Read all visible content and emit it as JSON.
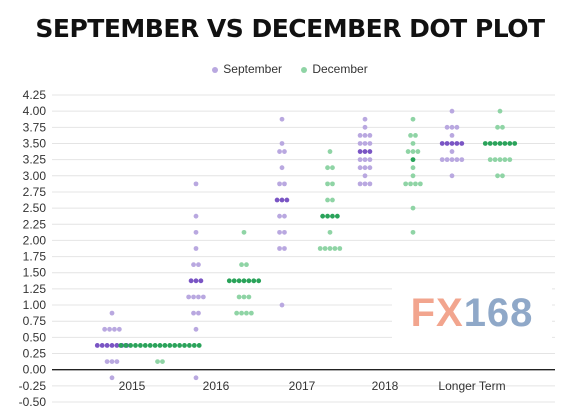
{
  "chart_data": {
    "type": "scatter",
    "title": "SEPTEMBER VS DECEMBER DOT PLOT",
    "legend_position": "top-center",
    "categories": [
      "2015",
      "2016",
      "2017",
      "2018",
      "Longer Term"
    ],
    "y_ticks": [
      "4.25",
      "4.00",
      "3.75",
      "3.50",
      "3.25",
      "3.00",
      "2.75",
      "2.50",
      "2.25",
      "2.00",
      "1.75",
      "1.50",
      "1.25",
      "1.00",
      "0.75",
      "0.50",
      "0.25",
      "0.00",
      "-0.25",
      "-0.50"
    ],
    "ylim": [
      -0.5,
      4.25
    ],
    "grid": true,
    "series": [
      {
        "name": "September",
        "color": "#b9a8e0",
        "mode_color": "#7a55c4",
        "groups": [
          {
            "category": "2015",
            "dots": [
              [
                0.875,
                1
              ],
              [
                0.625,
                4
              ],
              [
                0.375,
                7
              ],
              [
                0.125,
                3
              ],
              [
                -0.125,
                1
              ]
            ],
            "mode": 0.375
          },
          {
            "category": "2016",
            "dots": [
              [
                2.875,
                1
              ],
              [
                2.375,
                1
              ],
              [
                2.125,
                1
              ],
              [
                1.875,
                1
              ],
              [
                1.625,
                2
              ],
              [
                1.375,
                3
              ],
              [
                1.125,
                4
              ],
              [
                0.875,
                2
              ],
              [
                0.625,
                1
              ],
              [
                -0.125,
                1
              ]
            ],
            "mode": 1.375
          },
          {
            "category": "2017",
            "dots": [
              [
                3.875,
                1
              ],
              [
                3.5,
                1
              ],
              [
                3.375,
                2
              ],
              [
                3.125,
                1
              ],
              [
                2.875,
                2
              ],
              [
                2.625,
                3
              ],
              [
                2.375,
                2
              ],
              [
                2.125,
                2
              ],
              [
                1.875,
                2
              ],
              [
                1.0,
                1
              ]
            ],
            "mode": 2.625
          },
          {
            "category": "2018",
            "dots": [
              [
                3.875,
                1
              ],
              [
                3.75,
                1
              ],
              [
                3.625,
                3
              ],
              [
                3.5,
                3
              ],
              [
                3.375,
                3
              ],
              [
                3.25,
                3
              ],
              [
                3.125,
                3
              ],
              [
                3.0,
                1
              ],
              [
                2.875,
                3
              ]
            ],
            "mode": 3.375
          },
          {
            "category": "Longer Term",
            "dots": [
              [
                4.0,
                1
              ],
              [
                3.75,
                3
              ],
              [
                3.625,
                1
              ],
              [
                3.5,
                5
              ],
              [
                3.375,
                1
              ],
              [
                3.25,
                5
              ],
              [
                3.0,
                1
              ]
            ],
            "mode": 3.5
          }
        ]
      },
      {
        "name": "December",
        "color": "#8fd4a5",
        "mode_color": "#2aa35a",
        "groups": [
          {
            "category": "2015",
            "dots": [
              [
                0.375,
                17
              ],
              [
                0.125,
                2
              ]
            ],
            "mode": 0.375
          },
          {
            "category": "2016",
            "dots": [
              [
                2.125,
                1
              ],
              [
                1.625,
                2
              ],
              [
                1.375,
                7
              ],
              [
                1.125,
                3
              ],
              [
                0.875,
                4
              ]
            ],
            "mode": 1.375
          },
          {
            "category": "2017",
            "dots": [
              [
                3.375,
                1
              ],
              [
                3.125,
                2
              ],
              [
                2.875,
                2
              ],
              [
                2.625,
                2
              ],
              [
                2.375,
                4
              ],
              [
                2.125,
                1
              ],
              [
                1.875,
                5
              ]
            ],
            "mode": 2.375
          },
          {
            "category": "2018",
            "dots": [
              [
                3.875,
                1
              ],
              [
                3.625,
                2
              ],
              [
                3.5,
                1
              ],
              [
                3.375,
                3
              ],
              [
                3.25,
                1
              ],
              [
                3.125,
                1
              ],
              [
                3.0,
                1
              ],
              [
                2.875,
                4
              ],
              [
                2.5,
                1
              ],
              [
                2.125,
                1
              ]
            ],
            "mode": 3.25
          },
          {
            "category": "Longer Term",
            "dots": [
              [
                4.0,
                1
              ],
              [
                3.75,
                2
              ],
              [
                3.5,
                7
              ],
              [
                3.25,
                5
              ],
              [
                3.0,
                2
              ]
            ],
            "mode": 3.5
          }
        ]
      }
    ]
  },
  "watermark": {
    "part1": "FX",
    "part2": "168"
  }
}
